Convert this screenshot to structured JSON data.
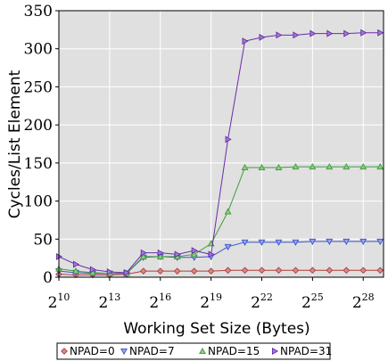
{
  "chart_data": {
    "type": "line",
    "xlabel": "Working Set Size (Bytes)",
    "ylabel": "Cycles/List Element",
    "x_scale": "log2",
    "xlim": [
      10,
      29.2
    ],
    "ylim": [
      0,
      350
    ],
    "y_ticks": [
      0,
      50,
      100,
      150,
      200,
      250,
      300,
      350
    ],
    "x_ticks": [
      {
        "base": "2",
        "exp": "10",
        "value": 10
      },
      {
        "base": "2",
        "exp": "13",
        "value": 13
      },
      {
        "base": "2",
        "exp": "16",
        "value": 16
      },
      {
        "base": "2",
        "exp": "19",
        "value": 19
      },
      {
        "base": "2",
        "exp": "22",
        "value": 22
      },
      {
        "base": "2",
        "exp": "25",
        "value": 25
      },
      {
        "base": "2",
        "exp": "28",
        "value": 28
      }
    ],
    "x_log2": [
      10,
      11,
      12,
      13,
      14,
      15,
      16,
      17,
      18,
      19,
      20,
      21,
      22,
      23,
      24,
      25,
      26,
      27,
      28,
      29
    ],
    "grid": true,
    "background": "#e0e0e0",
    "legend_position": "bottom",
    "series": [
      {
        "name": "NPAD=0",
        "marker": "diamond",
        "color": "#b03a3a",
        "fill": "#d98a8a",
        "values": [
          4,
          3,
          3,
          3,
          4,
          8,
          8,
          8,
          8,
          8,
          9,
          9,
          9,
          9,
          9,
          9,
          9,
          9,
          9,
          9
        ]
      },
      {
        "name": "NPAD=7",
        "marker": "triangle-down",
        "color": "#3a4fd0",
        "fill": "#9aa8e8",
        "values": [
          8,
          6,
          5,
          5,
          5,
          26,
          27,
          26,
          26,
          27,
          40,
          46,
          46,
          46,
          46,
          47,
          47,
          47,
          47,
          47
        ]
      },
      {
        "name": "NPAD=15",
        "marker": "triangle-up",
        "color": "#3e9b3e",
        "fill": "#90cc80",
        "values": [
          11,
          8,
          6,
          5,
          5,
          27,
          27,
          27,
          30,
          44,
          86,
          144,
          144,
          144,
          145,
          145,
          145,
          145,
          145,
          145
        ]
      },
      {
        "name": "NPAD=31",
        "marker": "triangle-right",
        "color": "#6a2ca8",
        "fill": "#9e7cd6",
        "values": [
          27,
          17,
          10,
          7,
          6,
          32,
          32,
          30,
          35,
          30,
          181,
          310,
          315,
          318,
          318,
          320,
          320,
          320,
          321,
          321
        ]
      }
    ]
  }
}
